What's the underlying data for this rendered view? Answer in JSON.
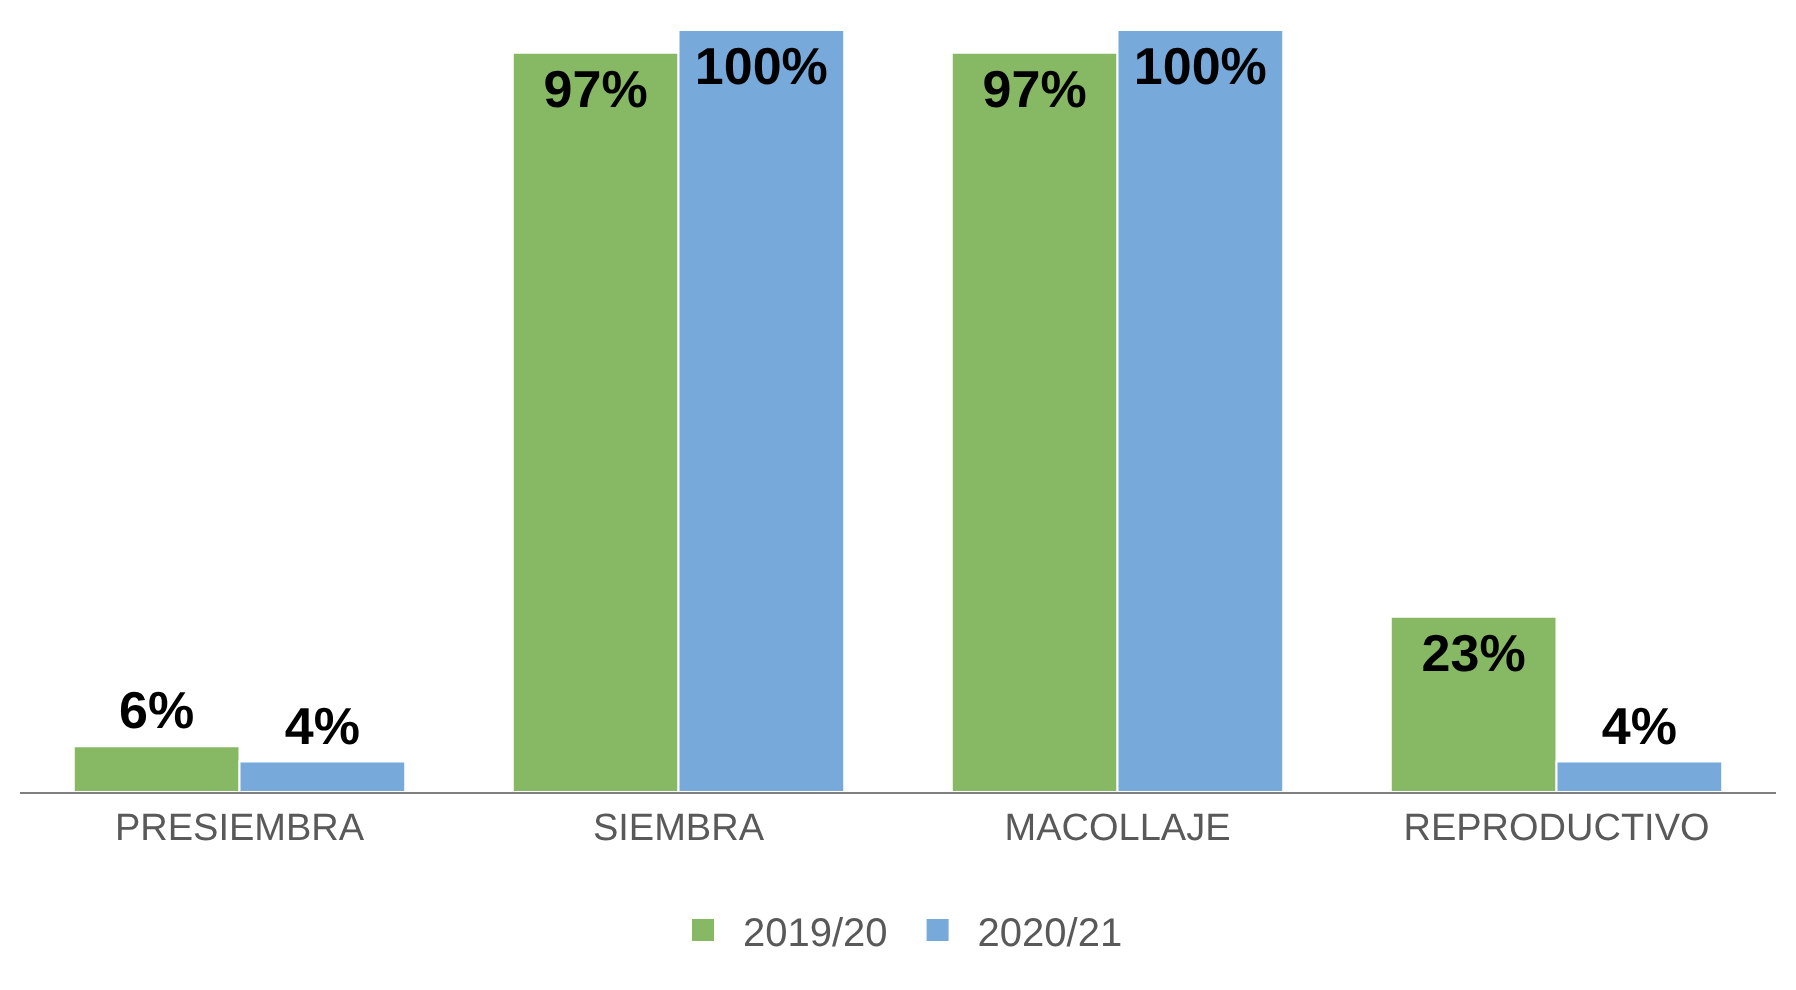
{
  "chart_data": {
    "type": "bar",
    "categories": [
      "PRESIEMBRA",
      "SIEMBRA",
      "MACOLLAJE",
      "REPRODUCTIVO"
    ],
    "series": [
      {
        "name": "2019/20",
        "color": "#87b864",
        "values": [
          6,
          97,
          97,
          23
        ],
        "value_labels": [
          "6%",
          "97%",
          "97%",
          "23%"
        ]
      },
      {
        "name": "2020/21",
        "color": "#77a9da",
        "values": [
          4,
          100,
          100,
          4
        ],
        "value_labels": [
          "4%",
          "100%",
          "100%",
          "4%"
        ]
      }
    ],
    "legend": "bottom"
  }
}
